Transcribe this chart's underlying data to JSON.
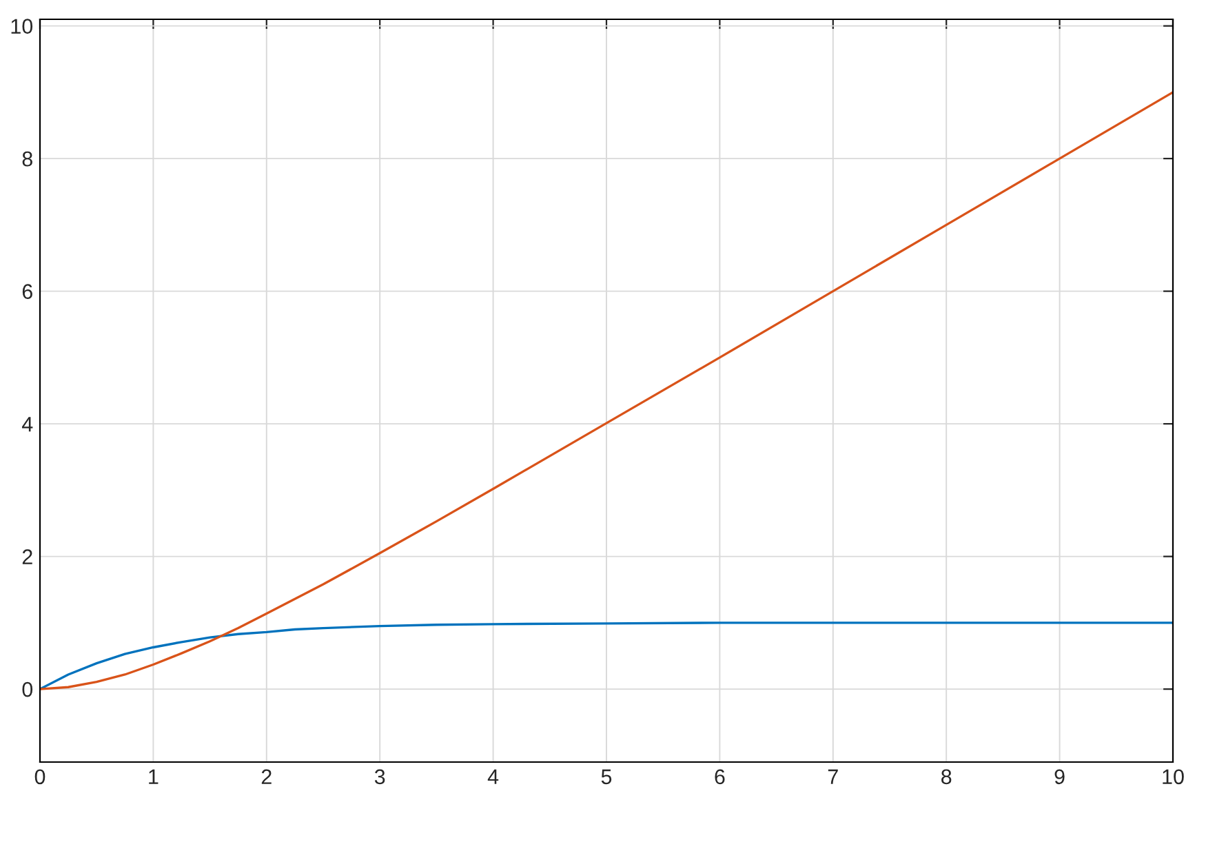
{
  "chart_data": {
    "type": "line",
    "x": [
      0,
      0.25,
      0.5,
      0.75,
      1,
      1.25,
      1.5,
      1.75,
      2,
      2.25,
      2.5,
      3,
      3.5,
      4,
      5,
      6,
      7,
      8,
      9,
      10
    ],
    "series": [
      {
        "color": "#0072bd",
        "values": [
          0,
          0.22,
          0.39,
          0.53,
          0.63,
          0.71,
          0.78,
          0.83,
          0.86,
          0.9,
          0.92,
          0.95,
          0.97,
          0.98,
          0.99,
          1.0,
          1.0,
          1.0,
          1.0,
          1.0
        ]
      },
      {
        "color": "#d95319",
        "values": [
          0,
          0.03,
          0.11,
          0.22,
          0.37,
          0.54,
          0.72,
          0.92,
          1.14,
          1.36,
          1.58,
          2.05,
          2.53,
          3.02,
          4.01,
          5.0,
          6.0,
          7.0,
          8.0,
          9.0
        ]
      }
    ],
    "xlim": [
      0,
      10
    ],
    "xticks": [
      0,
      1,
      2,
      3,
      4,
      5,
      6,
      7,
      8,
      9,
      10
    ],
    "ylim": [
      -1.1,
      10.1
    ],
    "yticks": [
      0,
      2,
      4,
      6,
      8,
      10
    ],
    "grid": true,
    "line_style": "solid",
    "marker": "none",
    "legend": false
  }
}
